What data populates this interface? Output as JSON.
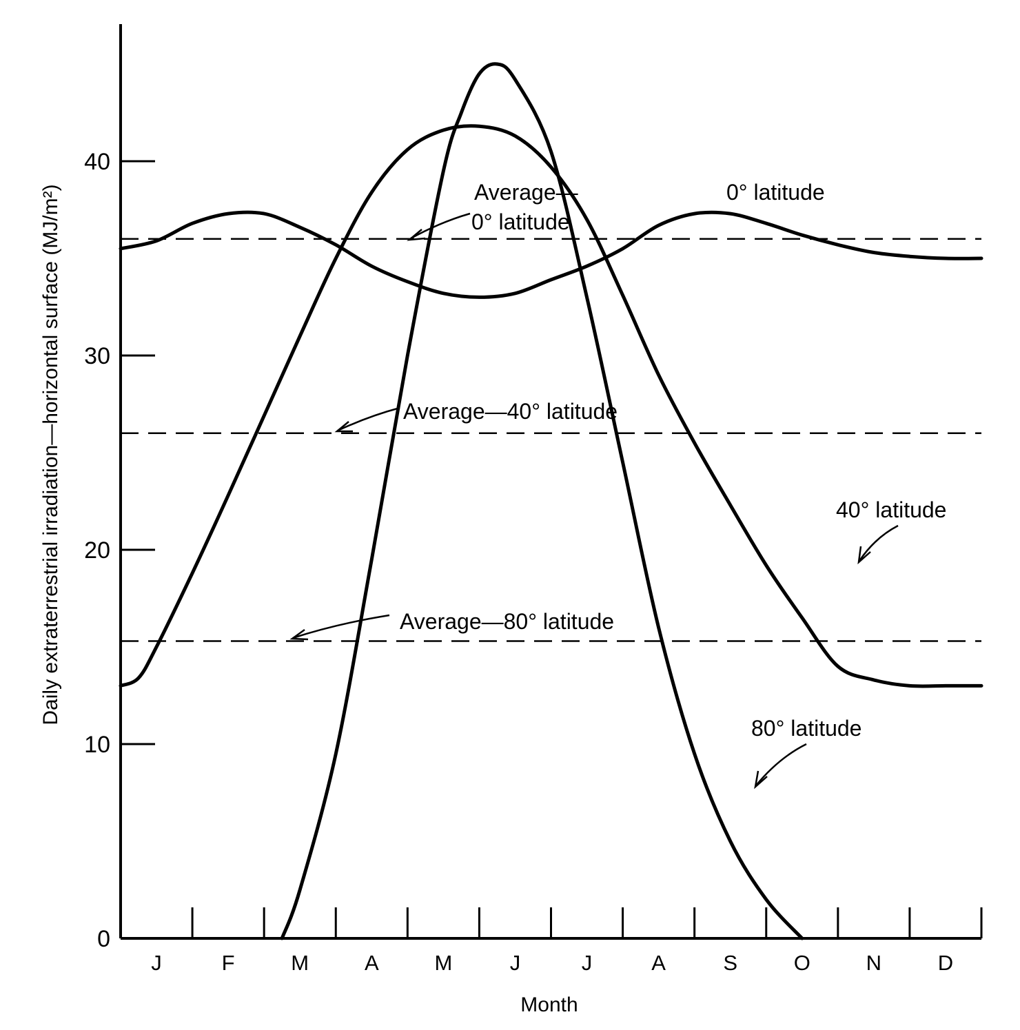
{
  "chart_data": {
    "type": "line",
    "title": "",
    "xlabel": "Month",
    "ylabel": "Daily extraterrestrial irradiation—horizontal surface (MJ/m²)",
    "ylim": [
      0,
      45
    ],
    "yticks": [
      0,
      10,
      20,
      30,
      40
    ],
    "ytick_labels": [
      "0",
      "10",
      "20",
      "30",
      "40"
    ],
    "x_unit": "month",
    "xlim": [
      0,
      12
    ],
    "categories": [
      "J",
      "F",
      "M",
      "A",
      "M",
      "J",
      "J",
      "A",
      "S",
      "O",
      "N",
      "D"
    ],
    "grid": false,
    "legend": "none",
    "series": [
      {
        "name": "0° latitude",
        "x": [
          0,
          0.5,
          1,
          1.5,
          2,
          2.5,
          3,
          3.5,
          4,
          4.5,
          5,
          5.5,
          6,
          6.5,
          7,
          7.5,
          8,
          8.5,
          9,
          9.5,
          10,
          10.5,
          11,
          11.5,
          12
        ],
        "values": [
          35.5,
          35.9,
          36.8,
          37.3,
          37.3,
          36.6,
          35.7,
          34.6,
          33.8,
          33.2,
          33.0,
          33.2,
          33.9,
          34.6,
          35.5,
          36.7,
          37.3,
          37.3,
          36.8,
          36.2,
          35.7,
          35.3,
          35.1,
          35.0,
          35.0
        ]
      },
      {
        "name": "40° latitude",
        "x": [
          0,
          0.25,
          0.5,
          1,
          1.5,
          2,
          2.5,
          3,
          3.5,
          4,
          4.5,
          5,
          5.5,
          6,
          6.5,
          7,
          7.5,
          8,
          8.5,
          9,
          9.5,
          10,
          10.5,
          11,
          11.5,
          11.75,
          12
        ],
        "values": [
          13.0,
          13.4,
          15.0,
          18.8,
          22.8,
          26.9,
          31.0,
          35.0,
          38.4,
          40.6,
          41.6,
          41.8,
          41.3,
          39.7,
          37.0,
          33.1,
          29.0,
          25.5,
          22.3,
          19.2,
          16.5,
          14.0,
          13.3,
          13.0,
          13.0,
          13.0,
          13.0
        ]
      },
      {
        "name": "80° latitude",
        "x": [
          2.25,
          2.5,
          3,
          3.5,
          4,
          4.5,
          4.75,
          5,
          5.25,
          5.5,
          6,
          6.5,
          7,
          7.5,
          8,
          8.5,
          9,
          9.5
        ],
        "values": [
          0,
          2.5,
          9.5,
          19.5,
          30.0,
          39.5,
          42.5,
          44.5,
          45.0,
          44.2,
          40.5,
          33.0,
          24.5,
          16.0,
          9.5,
          5.0,
          2.0,
          0
        ]
      }
    ],
    "averages": [
      {
        "name": "Average—0° latitude",
        "value": 36.0
      },
      {
        "name": "Average—40° latitude",
        "value": 26.0
      },
      {
        "name": "Average—80° latitude",
        "value": 15.3
      }
    ],
    "annotations": {
      "avg0_line1": "Average—",
      "avg0_line2": "0° latitude",
      "lat0": "0° latitude",
      "avg40": "Average—40° latitude",
      "lat40": "40° latitude",
      "avg80": "Average—80° latitude",
      "lat80": "80° latitude"
    }
  }
}
